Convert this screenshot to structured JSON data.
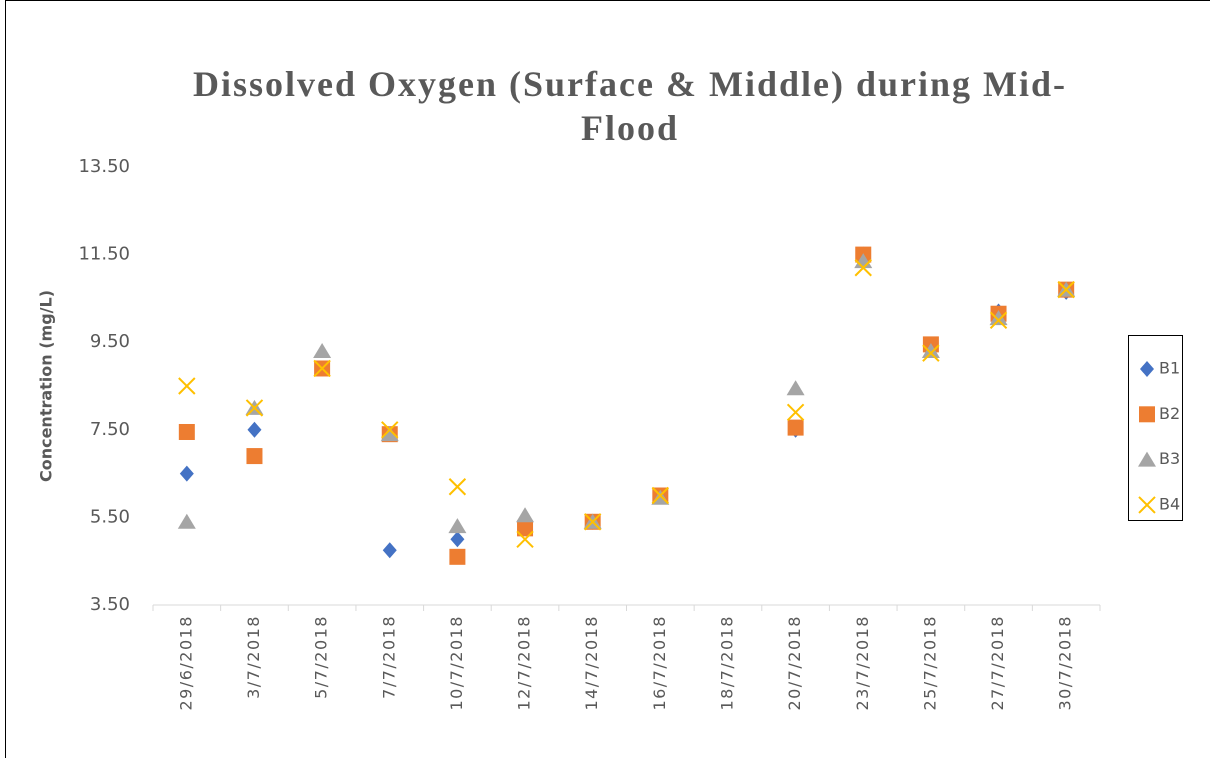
{
  "chart_data": {
    "type": "scatter",
    "title": "Dissolved Oxygen (Surface & Middle) during Mid-Flood",
    "y_label": "Concentration (mg/L)",
    "categories": [
      "29/6/2018",
      "3/7/2018",
      "5/7/2018",
      "7/7/2018",
      "10/7/2018",
      "12/7/2018",
      "14/7/2018",
      "16/7/2018",
      "18/7/2018",
      "20/7/2018",
      "23/7/2018",
      "25/7/2018",
      "27/7/2018",
      "30/7/2018"
    ],
    "series": [
      {
        "name": "B1",
        "color": "#4472c4",
        "marker": "diamond",
        "values": [
          6.5,
          7.5,
          8.9,
          4.75,
          5.0,
          5.25,
          5.4,
          6.0,
          null,
          7.5,
          11.5,
          9.4,
          10.2,
          10.65
        ]
      },
      {
        "name": "B2",
        "color": "#ed7d31",
        "marker": "square",
        "values": [
          7.45,
          6.9,
          8.9,
          7.4,
          4.6,
          5.25,
          5.4,
          6.0,
          null,
          7.55,
          11.5,
          9.45,
          10.15,
          10.7
        ]
      },
      {
        "name": "B3",
        "color": "#a5a5a5",
        "marker": "triangle",
        "values": [
          5.4,
          8.0,
          9.3,
          7.4,
          5.3,
          5.55,
          5.4,
          5.95,
          null,
          8.45,
          11.35,
          9.3,
          10.05,
          10.7
        ]
      },
      {
        "name": "B4",
        "color": "#ffc000",
        "marker": "x",
        "values": [
          8.5,
          8.0,
          8.9,
          7.5,
          6.2,
          5.0,
          5.4,
          6.0,
          null,
          7.9,
          11.2,
          9.25,
          10.0,
          10.7
        ]
      }
    ],
    "ylim": [
      3.5,
      13.5
    ],
    "yticks": [
      {
        "value": 3.5,
        "label": "3.50"
      },
      {
        "value": 5.5,
        "label": "5.50"
      },
      {
        "value": 7.5,
        "label": "7.50"
      },
      {
        "value": 9.5,
        "label": "9.50"
      },
      {
        "value": 11.5,
        "label": "11.50"
      },
      {
        "value": 13.5,
        "label": "13.50"
      }
    ],
    "grid": false,
    "legend": "right"
  }
}
